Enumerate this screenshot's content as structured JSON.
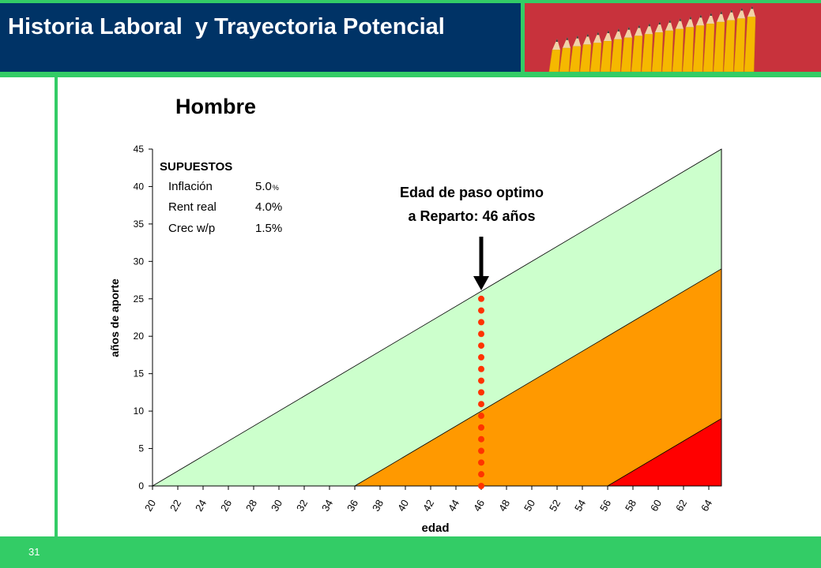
{
  "header": {
    "title": "Historia Laboral  y Trayectoria Potencial"
  },
  "footer": {
    "page_number": "31"
  },
  "colors": {
    "title_bg": "#003366",
    "accent_green": "#33cc66",
    "light_green": "#ccffcc",
    "orange": "#ff9900",
    "red": "#ff0000",
    "marker_dots": "#ff3300",
    "pencil_bg": "#c8323c"
  },
  "chart_data": {
    "type": "area",
    "title": "Hombre",
    "xlabel": "edad",
    "ylabel": "años de aporte",
    "xlim": [
      20,
      65
    ],
    "ylim": [
      0,
      45
    ],
    "x_ticks": [
      "20",
      "22",
      "24",
      "26",
      "28",
      "30",
      "32",
      "34",
      "36",
      "38",
      "40",
      "42",
      "44",
      "46",
      "48",
      "50",
      "52",
      "54",
      "56",
      "58",
      "60",
      "62",
      "64"
    ],
    "y_ticks": [
      "0",
      "5",
      "10",
      "15",
      "20",
      "25",
      "30",
      "35",
      "40",
      "45"
    ],
    "series": [
      {
        "x": [
          20,
          65
        ],
        "y": [
          0,
          45
        ],
        "color": "#ccffcc"
      },
      {
        "x": [
          36,
          65
        ],
        "y": [
          0,
          29
        ],
        "color": "#ff9900"
      },
      {
        "x": [
          56,
          65
        ],
        "y": [
          0,
          9
        ],
        "color": "#ff0000"
      }
    ],
    "marker": {
      "age": 46,
      "y_top": 25
    },
    "annotation": {
      "line1": "Edad de paso optimo",
      "line2": "a Reparto: 46 años"
    },
    "assumptions": {
      "heading": "SUPUESTOS",
      "rows": [
        {
          "label": "Inflación",
          "value": "5.0",
          "unit": "%"
        },
        {
          "label": "Rent real",
          "value": "4.0%"
        },
        {
          "label": "Crec w/p",
          "value": "1.5%"
        }
      ]
    }
  }
}
